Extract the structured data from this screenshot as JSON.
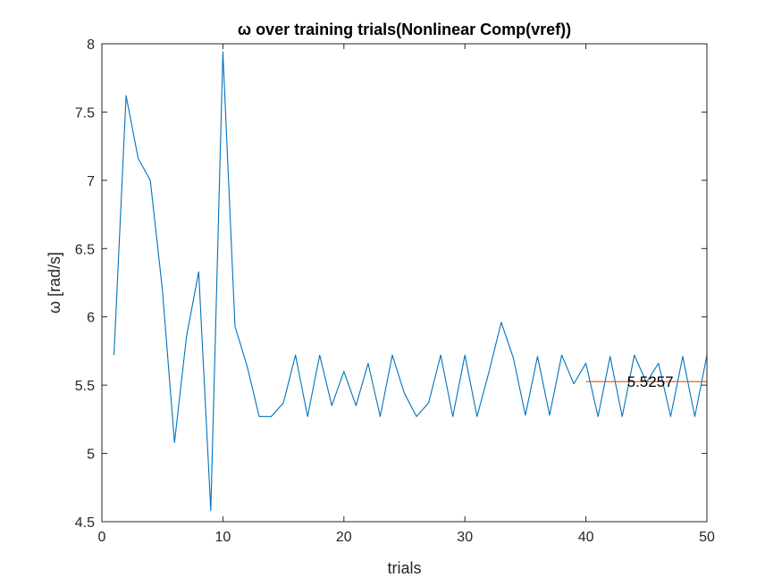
{
  "chart_data": {
    "type": "line",
    "title": "ω over training trials(Nonlinear Comp(vref))",
    "xlabel": "trials",
    "ylabel": "ω [rad/s]",
    "xlim": [
      0,
      50
    ],
    "ylim": [
      4.5,
      8
    ],
    "xticks": [
      "0",
      "10",
      "20",
      "30",
      "40",
      "50"
    ],
    "yticks": [
      "4.5",
      "5",
      "5.5",
      "6",
      "6.5",
      "7",
      "7.5",
      "8"
    ],
    "grid": false,
    "series": [
      {
        "color": "#0072BD",
        "x": [
          1,
          2,
          3,
          4,
          5,
          6,
          7,
          8,
          9,
          10,
          11,
          12,
          13,
          14,
          15,
          16,
          17,
          18,
          19,
          20,
          21,
          22,
          23,
          24,
          25,
          26,
          27,
          28,
          29,
          30,
          31,
          32,
          33,
          34,
          35,
          36,
          37,
          38,
          39,
          40,
          41,
          42,
          43,
          44,
          45,
          46,
          47,
          48,
          49,
          50
        ],
        "y": [
          5.72,
          7.62,
          7.16,
          7.0,
          6.2,
          5.08,
          5.86,
          6.33,
          4.58,
          7.94,
          5.93,
          5.64,
          5.27,
          5.27,
          5.37,
          5.72,
          5.27,
          5.72,
          5.35,
          5.6,
          5.35,
          5.66,
          5.27,
          5.72,
          5.44,
          5.27,
          5.37,
          5.72,
          5.27,
          5.72,
          5.27,
          5.6,
          5.96,
          5.7,
          5.28,
          5.71,
          5.28,
          5.72,
          5.51,
          5.66,
          5.27,
          5.71,
          5.27,
          5.72,
          5.52,
          5.66,
          5.27,
          5.71,
          5.27,
          5.72
        ]
      },
      {
        "color": "#D95319",
        "x": [
          40,
          50
        ],
        "y": [
          5.5257,
          5.5257
        ]
      }
    ],
    "annotations": [
      {
        "text": "5.5257",
        "x": 43.4,
        "y": 5.5257
      }
    ]
  }
}
